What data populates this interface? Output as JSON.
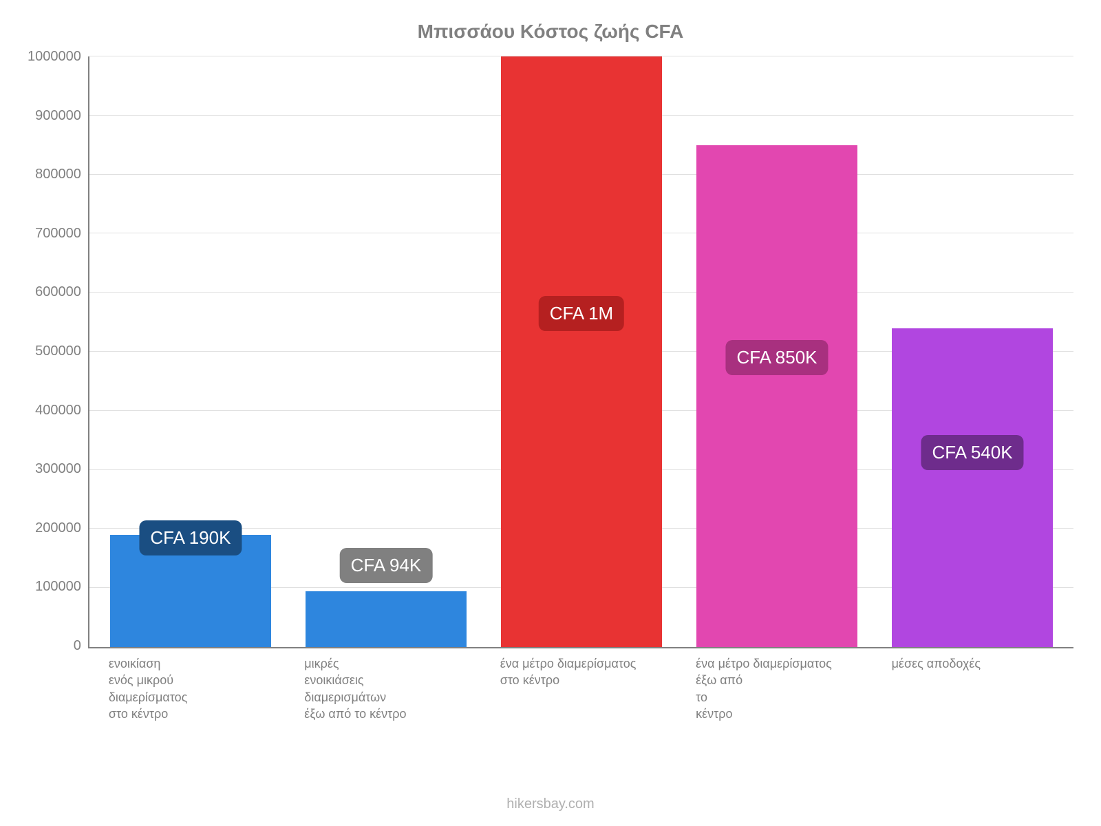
{
  "chart": {
    "type": "bar",
    "title": "Μπισσάου Κόστος ζωής CFA",
    "title_color": "#808080",
    "title_fontsize": 28,
    "background_color": "#ffffff",
    "grid_color": "#e0e0e0",
    "axis_color": "#808080",
    "tick_color": "#808080",
    "tick_fontsize": 20,
    "xlabel_fontsize": 18,
    "ylim": [
      0,
      1000000
    ],
    "yticks": [
      1000000,
      900000,
      800000,
      700000,
      600000,
      500000,
      400000,
      300000,
      200000,
      100000,
      0
    ],
    "ytick_labels": [
      "1000000",
      "900000",
      "800000",
      "700000",
      "600000",
      "500000",
      "400000",
      "300000",
      "200000",
      "100000",
      "0"
    ],
    "bar_width_pct": 100,
    "bars": [
      {
        "category": "ενοικίαση\nενός μικρού\nδιαμερίσματος\nστο κέντρο",
        "value": 190000,
        "color": "#2e86de",
        "badge_text": "CFA 190K",
        "badge_bg": "#1a4e82",
        "badge_pos_pct": 15.5
      },
      {
        "category": "μικρές\nενοικιάσεις\nδιαμερισμάτων\nέξω από το κέντρο",
        "value": 94000,
        "color": "#2e86de",
        "badge_text": "CFA 94K",
        "badge_bg": "#808080",
        "badge_pos_pct": 10.8
      },
      {
        "category": "ένα μέτρο διαμερίσματος\nστο κέντρο",
        "value": 1000000,
        "color": "#e83333",
        "badge_text": "CFA 1M",
        "badge_bg": "#b52020",
        "badge_pos_pct": 53.5
      },
      {
        "category": "ένα μέτρο διαμερίσματος\nέξω από\nτο\nκέντρο",
        "value": 850000,
        "color": "#e247b0",
        "badge_text": "CFA 850K",
        "badge_bg": "#a8307f",
        "badge_pos_pct": 46
      },
      {
        "category": "μέσες αποδοχές",
        "value": 540000,
        "color": "#b146e0",
        "badge_text": "CFA 540K",
        "badge_bg": "#6e2c8c",
        "badge_pos_pct": 30
      }
    ]
  },
  "footer": "hikersbay.com"
}
